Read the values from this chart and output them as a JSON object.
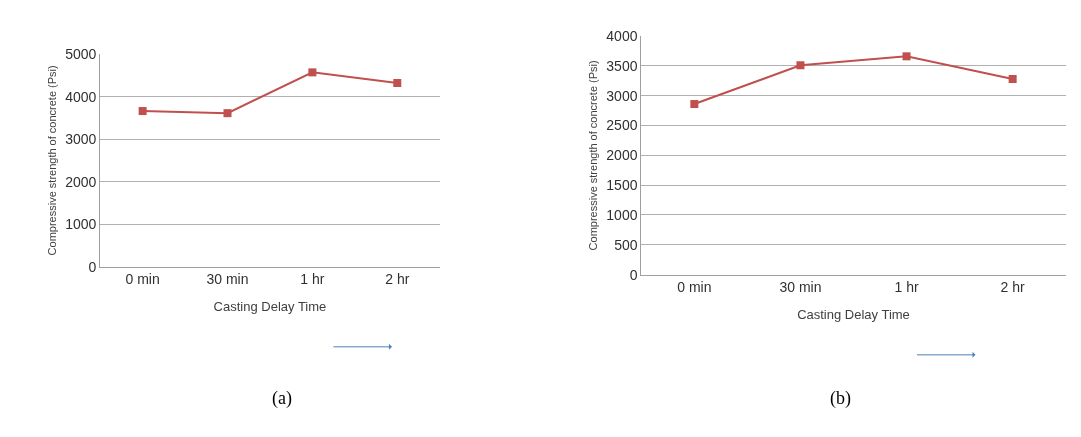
{
  "chart_data": [
    {
      "type": "line",
      "categories": [
        "0 min",
        "30 min",
        "1 hr",
        "2 hr"
      ],
      "series": [
        {
          "color": "#c0504d",
          "values": [
            3660,
            3610,
            4570,
            4320
          ]
        }
      ],
      "xlabel": "Casting Delay Time",
      "ylabel": "Compressive strength of concrete (Psi)",
      "ylim": [
        0,
        5000
      ],
      "yticks": [
        0,
        1000,
        2000,
        3000,
        4000,
        5000
      ],
      "grid": "y",
      "marker": "square",
      "line_style": "solid",
      "annotations": [
        "(a)"
      ]
    },
    {
      "type": "line",
      "categories": [
        "0 min",
        "30 min",
        "1 hr",
        "2 hr"
      ],
      "series": [
        {
          "color": "#c0504d",
          "values": [
            2860,
            3510,
            3660,
            3280
          ]
        }
      ],
      "xlabel": "Casting Delay Time",
      "ylabel": "Compressive strength of concrete (Psi)",
      "ylim": [
        0,
        4000
      ],
      "yticks": [
        0,
        500,
        1000,
        1500,
        2000,
        2500,
        3000,
        3500,
        4000
      ],
      "grid": "y",
      "marker": "square",
      "line_style": "solid",
      "annotations": [
        "(b)"
      ]
    }
  ]
}
